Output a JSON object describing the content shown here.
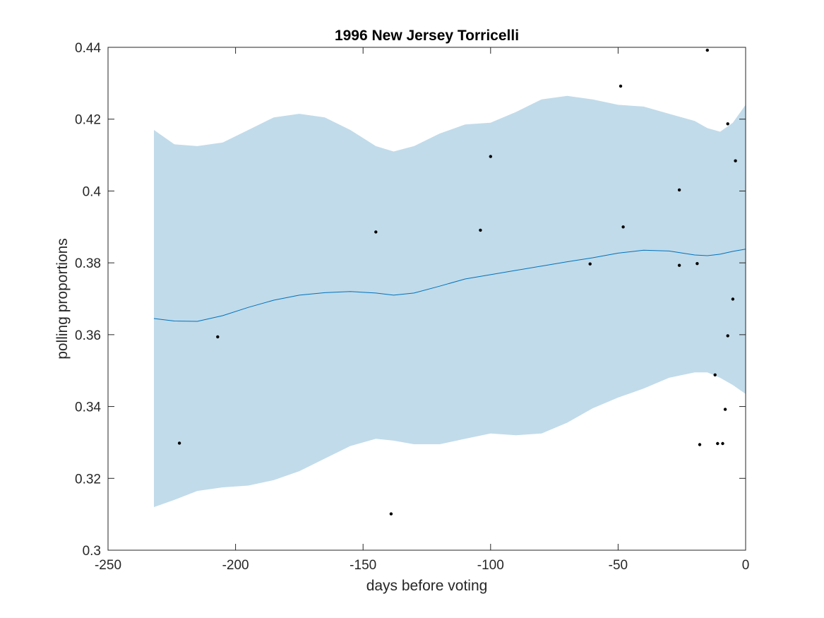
{
  "chart_data": {
    "type": "line",
    "title": "1996 New Jersey Torricelli",
    "xlabel": "days before voting",
    "ylabel": "polling proportions",
    "xlim": [
      -250,
      0
    ],
    "ylim": [
      0.3,
      0.44
    ],
    "x_ticks": [
      -250,
      -200,
      -150,
      -100,
      -50,
      0
    ],
    "x_tick_labels": [
      "-250",
      "-200",
      "-150",
      "-100",
      "-50",
      "0"
    ],
    "y_ticks": [
      0.3,
      0.32,
      0.34,
      0.36,
      0.38,
      0.4,
      0.42,
      0.44
    ],
    "y_tick_labels": [
      "0.3",
      "0.32",
      "0.34",
      "0.36",
      "0.38",
      "0.4",
      "0.42",
      "0.44"
    ],
    "grid": false,
    "colors": {
      "band": "#c1dbea",
      "line": "#0072bd",
      "points": "#000000",
      "axes": "#262626"
    },
    "series": [
      {
        "type": "band",
        "x": [
          -232,
          -224,
          -215,
          -205,
          -195,
          -185,
          -175,
          -165,
          -155,
          -145,
          -138,
          -130,
          -120,
          -110,
          -100,
          -90,
          -80,
          -70,
          -60,
          -50,
          -40,
          -30,
          -20,
          -15,
          -10,
          -5,
          0
        ],
        "upper": [
          0.417,
          0.413,
          0.4125,
          0.4135,
          0.417,
          0.4205,
          0.4215,
          0.4205,
          0.417,
          0.4125,
          0.411,
          0.4125,
          0.416,
          0.4185,
          0.419,
          0.422,
          0.4255,
          0.4265,
          0.4255,
          0.424,
          0.4235,
          0.4215,
          0.4195,
          0.4175,
          0.4165,
          0.419,
          0.424
        ],
        "lower": [
          0.312,
          0.314,
          0.3165,
          0.3175,
          0.318,
          0.3195,
          0.322,
          0.3255,
          0.329,
          0.331,
          0.3305,
          0.3295,
          0.3295,
          0.331,
          0.3325,
          0.332,
          0.3325,
          0.3355,
          0.3395,
          0.3425,
          0.345,
          0.348,
          0.3495,
          0.3495,
          0.348,
          0.346,
          0.3435
        ]
      },
      {
        "type": "line",
        "x": [
          -232,
          -224,
          -215,
          -205,
          -195,
          -185,
          -175,
          -165,
          -155,
          -145,
          -138,
          -130,
          -120,
          -110,
          -100,
          -90,
          -80,
          -70,
          -60,
          -50,
          -40,
          -30,
          -20,
          -15,
          -10,
          -5,
          0
        ],
        "y": [
          0.3645,
          0.3638,
          0.3637,
          0.3653,
          0.3676,
          0.3696,
          0.371,
          0.3717,
          0.372,
          0.3716,
          0.371,
          0.3716,
          0.3735,
          0.3755,
          0.3767,
          0.3779,
          0.3791,
          0.3803,
          0.3814,
          0.3827,
          0.3835,
          0.3833,
          0.3822,
          0.382,
          0.3824,
          0.3832,
          0.3838
        ]
      },
      {
        "type": "scatter",
        "x": [
          -222,
          -207,
          -145,
          -139,
          -104,
          -100,
          -61,
          -49,
          -48,
          -26,
          -26,
          -19,
          -18,
          -15,
          -12,
          -11,
          -9,
          -8,
          -7,
          -7,
          -5,
          -4
        ],
        "y": [
          0.3298,
          0.3594,
          0.3886,
          0.3101,
          0.3891,
          0.4096,
          0.3797,
          0.4292,
          0.39,
          0.4003,
          0.3793,
          0.3798,
          0.3294,
          0.4392,
          0.3488,
          0.3297,
          0.3297,
          0.3392,
          0.4187,
          0.3597,
          0.3699,
          0.4084
        ]
      }
    ]
  }
}
